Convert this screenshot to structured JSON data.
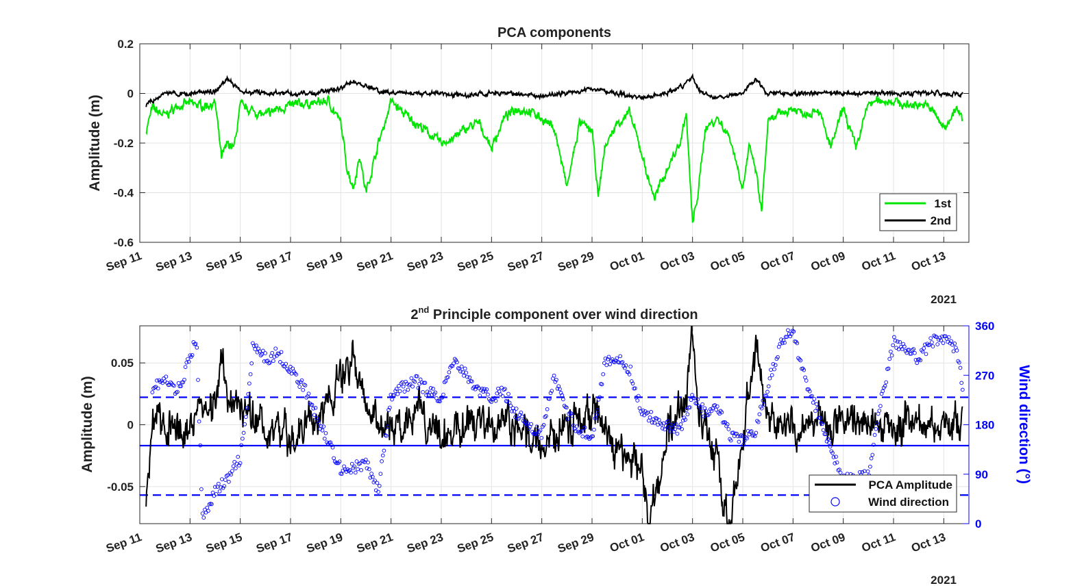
{
  "chart_data": [
    {
      "type": "line",
      "title": "PCA components",
      "ylabel": "Amplitude (m)",
      "xlabel": "",
      "year_label": "2021",
      "ylim": [
        -0.6,
        0.2
      ],
      "yticks": [
        0.2,
        0,
        -0.2,
        -0.4,
        -0.6
      ],
      "ytick_labels": [
        "0.2",
        "0",
        "-0.2",
        "-0.4",
        "-0.6"
      ],
      "xlim": [
        "2021-09-11",
        "2021-10-14"
      ],
      "xtick_labels": [
        "Sep 11",
        "Sep 13",
        "Sep 15",
        "Sep 17",
        "Sep 19",
        "Sep 21",
        "Sep 23",
        "Sep 25",
        "Sep 27",
        "Sep 29",
        "Oct 01",
        "Oct 03",
        "Oct 05",
        "Oct 07",
        "Oct 09",
        "Oct 11",
        "Oct 13"
      ],
      "grid": true,
      "legend_position": "bottom-right",
      "series": [
        {
          "name": "1st",
          "color": "#00e600",
          "x": [
            "2021-09-11T06",
            "2021-09-11T12",
            "2021-09-12T00",
            "2021-09-12T12",
            "2021-09-13T00",
            "2021-09-13T12",
            "2021-09-14T00",
            "2021-09-14T06",
            "2021-09-14T12",
            "2021-09-14T18",
            "2021-09-15T00",
            "2021-09-15T12",
            "2021-09-16T00",
            "2021-09-16T12",
            "2021-09-17T00",
            "2021-09-17T12",
            "2021-09-18T00",
            "2021-09-18T12",
            "2021-09-19T00",
            "2021-09-19T06",
            "2021-09-19T12",
            "2021-09-19T18",
            "2021-09-20T00",
            "2021-09-20T06",
            "2021-09-20T12",
            "2021-09-20T18",
            "2021-09-21T00",
            "2021-09-21T12",
            "2021-09-22T00",
            "2021-09-22T12",
            "2021-09-23T00",
            "2021-09-23T12",
            "2021-09-24T00",
            "2021-09-24T12",
            "2021-09-25T00",
            "2021-09-25T12",
            "2021-09-26T00",
            "2021-09-26T12",
            "2021-09-27T00",
            "2021-09-27T12",
            "2021-09-28T00",
            "2021-09-28T12",
            "2021-09-29T00",
            "2021-09-29T06",
            "2021-09-29T12",
            "2021-09-30T00",
            "2021-09-30T12",
            "2021-10-01T00",
            "2021-10-01T06",
            "2021-10-01T12",
            "2021-10-02T00",
            "2021-10-02T12",
            "2021-10-02T18",
            "2021-10-03T00",
            "2021-10-03T06",
            "2021-10-03T12",
            "2021-10-04T00",
            "2021-10-04T12",
            "2021-10-05T00",
            "2021-10-05T06",
            "2021-10-05T12",
            "2021-10-05T18",
            "2021-10-06T00",
            "2021-10-06T12",
            "2021-10-07T00",
            "2021-10-07T12",
            "2021-10-08T00",
            "2021-10-08T12",
            "2021-10-09T00",
            "2021-10-09T12",
            "2021-10-10T00",
            "2021-10-10T12",
            "2021-10-11T00",
            "2021-10-11T12",
            "2021-10-12T00",
            "2021-10-12T12",
            "2021-10-13T00",
            "2021-10-13T12",
            "2021-10-13T18"
          ],
          "y": [
            -0.15,
            -0.06,
            -0.09,
            -0.05,
            -0.04,
            -0.05,
            -0.04,
            -0.26,
            -0.2,
            -0.22,
            -0.05,
            -0.07,
            -0.09,
            -0.06,
            -0.05,
            -0.04,
            -0.04,
            -0.03,
            -0.12,
            -0.3,
            -0.38,
            -0.25,
            -0.4,
            -0.3,
            -0.2,
            -0.12,
            -0.03,
            -0.08,
            -0.12,
            -0.16,
            -0.2,
            -0.18,
            -0.14,
            -0.12,
            -0.22,
            -0.1,
            -0.06,
            -0.07,
            -0.1,
            -0.14,
            -0.38,
            -0.12,
            -0.15,
            -0.42,
            -0.22,
            -0.12,
            -0.08,
            -0.25,
            -0.35,
            -0.42,
            -0.3,
            -0.2,
            -0.08,
            -0.53,
            -0.38,
            -0.14,
            -0.1,
            -0.18,
            -0.38,
            -0.22,
            -0.3,
            -0.48,
            -0.12,
            -0.08,
            -0.06,
            -0.08,
            -0.06,
            -0.22,
            -0.06,
            -0.22,
            -0.04,
            -0.03,
            -0.03,
            -0.05,
            -0.04,
            -0.06,
            -0.14,
            -0.06,
            -0.11
          ]
        },
        {
          "name": "2nd",
          "color": "#000000",
          "x": [
            "2021-09-11T06",
            "2021-09-12T00",
            "2021-09-13T00",
            "2021-09-14T00",
            "2021-09-14T12",
            "2021-09-15T00",
            "2021-09-16T00",
            "2021-09-17T00",
            "2021-09-18T00",
            "2021-09-19T00",
            "2021-09-19T12",
            "2021-09-20T00",
            "2021-09-20T12",
            "2021-09-21T00",
            "2021-09-22T00",
            "2021-09-23T00",
            "2021-09-24T00",
            "2021-09-25T00",
            "2021-09-26T00",
            "2021-09-27T00",
            "2021-09-28T00",
            "2021-09-29T00",
            "2021-09-30T00",
            "2021-10-01T00",
            "2021-10-02T00",
            "2021-10-02T18",
            "2021-10-03T00",
            "2021-10-03T06",
            "2021-10-04T00",
            "2021-10-05T00",
            "2021-10-05T12",
            "2021-10-06T00",
            "2021-10-07T00",
            "2021-10-08T00",
            "2021-10-09T00",
            "2021-10-10T00",
            "2021-10-11T00",
            "2021-10-12T00",
            "2021-10-13T00",
            "2021-10-13T18"
          ],
          "y": [
            -0.05,
            0.0,
            0.0,
            0.01,
            0.06,
            0.01,
            0.0,
            0.0,
            0.0,
            0.02,
            0.05,
            0.03,
            0.01,
            0.0,
            0.0,
            0.0,
            -0.01,
            0.0,
            0.0,
            -0.01,
            0.0,
            0.02,
            0.0,
            -0.02,
            0.0,
            0.04,
            0.07,
            0.01,
            -0.02,
            0.0,
            0.06,
            0.0,
            0.0,
            0.0,
            0.0,
            0.0,
            0.0,
            0.0,
            0.0,
            0.0
          ]
        }
      ]
    },
    {
      "type": "line",
      "title_main": "2",
      "title_sup": "nd",
      "title_rest": " Principle component over wind direction",
      "ylabel": "Amplitude (m)",
      "y2label": "Wind direction (°)",
      "year_label": "2021",
      "ylim": [
        -0.08,
        0.08
      ],
      "yticks": [
        0.05,
        0,
        -0.05
      ],
      "ytick_labels": [
        "0.05",
        "0",
        "-0.05"
      ],
      "y2lim": [
        0,
        360
      ],
      "y2ticks": [
        360,
        270,
        180,
        90,
        0
      ],
      "y2tick_labels": [
        "360",
        "270",
        "180",
        "90",
        "0"
      ],
      "xlim": [
        "2021-09-11",
        "2021-10-14"
      ],
      "xtick_labels": [
        "Sep 11",
        "Sep 13",
        "Sep 15",
        "Sep 17",
        "Sep 19",
        "Sep 21",
        "Sep 23",
        "Sep 25",
        "Sep 27",
        "Sep 29",
        "Oct 01",
        "Oct 03",
        "Oct 05",
        "Oct 07",
        "Oct 09",
        "Oct 11",
        "Oct 13"
      ],
      "grid": true,
      "legend_position": "bottom-right",
      "reference_lines_deg": [
        {
          "value": 230,
          "style": "dashed"
        },
        {
          "value": 142,
          "style": "solid"
        },
        {
          "value": 52,
          "style": "dashed"
        }
      ],
      "reference_line_color": "#0000ff",
      "series": [
        {
          "name": "PCA Amplitude",
          "color": "#000000",
          "axis": "left",
          "x": [
            "2021-09-11T06",
            "2021-09-11T12",
            "2021-09-12T00",
            "2021-09-13T00",
            "2021-09-14T00",
            "2021-09-14T06",
            "2021-09-14T12",
            "2021-09-15T00",
            "2021-09-16T00",
            "2021-09-17T00",
            "2021-09-18T00",
            "2021-09-19T00",
            "2021-09-19T12",
            "2021-09-20T00",
            "2021-09-20T12",
            "2021-09-21T00",
            "2021-09-22T00",
            "2021-09-22T12",
            "2021-09-23T00",
            "2021-09-24T00",
            "2021-09-25T00",
            "2021-09-26T00",
            "2021-09-27T00",
            "2021-09-28T00",
            "2021-09-29T00",
            "2021-09-30T00",
            "2021-10-01T00",
            "2021-10-01T06",
            "2021-10-02T00",
            "2021-10-02T18",
            "2021-10-03T00",
            "2021-10-03T06",
            "2021-10-04T00",
            "2021-10-04T12",
            "2021-10-05T00",
            "2021-10-05T12",
            "2021-10-06T00",
            "2021-10-07T00",
            "2021-10-08T00",
            "2021-10-09T00",
            "2021-10-10T00",
            "2021-10-11T00",
            "2021-10-12T00",
            "2021-10-13T00",
            "2021-10-13T18"
          ],
          "y": [
            -0.06,
            0.01,
            0.0,
            0.0,
            0.02,
            0.06,
            0.03,
            0.01,
            0.0,
            -0.01,
            0.0,
            0.04,
            0.05,
            0.02,
            0.0,
            0.0,
            0.01,
            0.0,
            -0.01,
            0.0,
            0.0,
            0.0,
            -0.02,
            0.0,
            0.01,
            -0.02,
            -0.03,
            -0.08,
            -0.01,
            0.03,
            0.077,
            0.01,
            -0.03,
            -0.08,
            -0.01,
            0.065,
            0.0,
            0.0,
            0.0,
            0.0,
            0.0,
            0.0,
            0.0,
            0.0,
            0.0
          ]
        },
        {
          "name": "Wind direction",
          "color": "#0000ff",
          "axis": "right",
          "x": [
            "2021-09-11T12",
            "2021-09-12T00",
            "2021-09-12T12",
            "2021-09-13T00",
            "2021-09-13T06",
            "2021-09-13T12",
            "2021-09-14T00",
            "2021-09-14T12",
            "2021-09-15T00",
            "2021-09-15T06",
            "2021-09-15T12",
            "2021-09-16T00",
            "2021-09-16T12",
            "2021-09-17T00",
            "2021-09-17T12",
            "2021-09-18T00",
            "2021-09-18T12",
            "2021-09-19T00",
            "2021-09-19T12",
            "2021-09-20T00",
            "2021-09-20T12",
            "2021-09-21T00",
            "2021-09-21T12",
            "2021-09-22T00",
            "2021-09-22T12",
            "2021-09-23T00",
            "2021-09-23T12",
            "2021-09-24T00",
            "2021-09-24T12",
            "2021-09-25T00",
            "2021-09-25T12",
            "2021-09-26T00",
            "2021-09-26T12",
            "2021-09-27T00",
            "2021-09-27T12",
            "2021-09-28T00",
            "2021-09-28T12",
            "2021-09-29T00",
            "2021-09-29T12",
            "2021-09-30T00",
            "2021-09-30T12",
            "2021-10-01T00",
            "2021-10-01T12",
            "2021-10-02T00",
            "2021-10-02T12",
            "2021-10-03T00",
            "2021-10-03T12",
            "2021-10-04T00",
            "2021-10-04T12",
            "2021-10-05T00",
            "2021-10-05T12",
            "2021-10-06T00",
            "2021-10-06T12",
            "2021-10-07T00",
            "2021-10-07T12",
            "2021-10-08T00",
            "2021-10-08T12",
            "2021-10-09T00",
            "2021-10-09T12",
            "2021-10-10T00",
            "2021-10-10T12",
            "2021-10-11T00",
            "2021-10-11T12",
            "2021-10-12T00",
            "2021-10-12T12",
            "2021-10-13T00",
            "2021-10-13T12",
            "2021-10-13T18"
          ],
          "y": [
            250,
            260,
            240,
            300,
            340,
            10,
            60,
            80,
            120,
            200,
            320,
            300,
            310,
            280,
            250,
            200,
            150,
            100,
            100,
            110,
            60,
            230,
            250,
            260,
            240,
            230,
            300,
            270,
            240,
            230,
            240,
            200,
            180,
            160,
            270,
            200,
            170,
            160,
            290,
            300,
            280,
            200,
            190,
            180,
            170,
            230,
            200,
            210,
            160,
            150,
            170,
            250,
            330,
            350,
            260,
            200,
            140,
            80,
            80,
            90,
            220,
            330,
            320,
            300,
            330,
            340,
            320,
            250
          ]
        }
      ]
    }
  ]
}
